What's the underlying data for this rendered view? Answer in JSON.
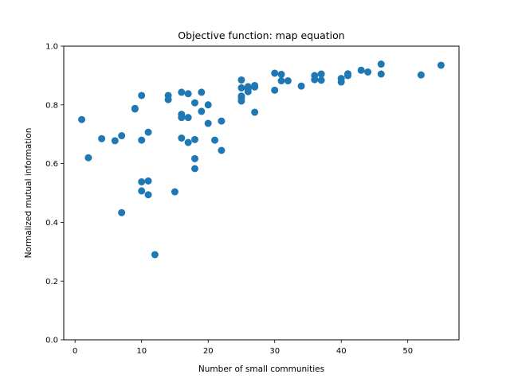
{
  "chart_data": {
    "type": "scatter",
    "title": "Objective function: map equation",
    "xlabel": "Number of small communities",
    "ylabel": "Normalized mutual information",
    "xlim": [
      -1.7,
      57.7
    ],
    "ylim": [
      0.0,
      1.0
    ],
    "xticks": [
      0,
      10,
      20,
      30,
      40,
      50
    ],
    "yticks": [
      0.0,
      0.2,
      0.4,
      0.6,
      0.8,
      1.0
    ],
    "ytick_labels": [
      "0.0",
      "0.2",
      "0.4",
      "0.6",
      "0.8",
      "1.0"
    ],
    "point_color": "#1f77b4",
    "grid": false,
    "points": [
      [
        1,
        0.75
      ],
      [
        2,
        0.62
      ],
      [
        4,
        0.685
      ],
      [
        6,
        0.678
      ],
      [
        7,
        0.695
      ],
      [
        7,
        0.433
      ],
      [
        9,
        0.786
      ],
      [
        9,
        0.788
      ],
      [
        10,
        0.832
      ],
      [
        10,
        0.68
      ],
      [
        10,
        0.538
      ],
      [
        10,
        0.507
      ],
      [
        11,
        0.707
      ],
      [
        11,
        0.541
      ],
      [
        11,
        0.494
      ],
      [
        12,
        0.29
      ],
      [
        14,
        0.832
      ],
      [
        14,
        0.818
      ],
      [
        15,
        0.504
      ],
      [
        16,
        0.843
      ],
      [
        16,
        0.768
      ],
      [
        16,
        0.757
      ],
      [
        16,
        0.687
      ],
      [
        17,
        0.838
      ],
      [
        17,
        0.757
      ],
      [
        17,
        0.672
      ],
      [
        18,
        0.807
      ],
      [
        18,
        0.682
      ],
      [
        18,
        0.617
      ],
      [
        18,
        0.583
      ],
      [
        19,
        0.843
      ],
      [
        19,
        0.778
      ],
      [
        20,
        0.8
      ],
      [
        20,
        0.737
      ],
      [
        21,
        0.68
      ],
      [
        22,
        0.745
      ],
      [
        22,
        0.645
      ],
      [
        25,
        0.885
      ],
      [
        25,
        0.858
      ],
      [
        25,
        0.83
      ],
      [
        25,
        0.824
      ],
      [
        25,
        0.813
      ],
      [
        26,
        0.862
      ],
      [
        26,
        0.855
      ],
      [
        26,
        0.845
      ],
      [
        27,
        0.866
      ],
      [
        27,
        0.861
      ],
      [
        27,
        0.775
      ],
      [
        30,
        0.908
      ],
      [
        30,
        0.85
      ],
      [
        31,
        0.904
      ],
      [
        31,
        0.882
      ],
      [
        32,
        0.882
      ],
      [
        34,
        0.864
      ],
      [
        36,
        0.9
      ],
      [
        36,
        0.886
      ],
      [
        37,
        0.905
      ],
      [
        37,
        0.884
      ],
      [
        40,
        0.89
      ],
      [
        40,
        0.878
      ],
      [
        41,
        0.906
      ],
      [
        41,
        0.9
      ],
      [
        43,
        0.918
      ],
      [
        44,
        0.912
      ],
      [
        46,
        0.939
      ],
      [
        46,
        0.905
      ],
      [
        52,
        0.902
      ],
      [
        55,
        0.935
      ]
    ]
  }
}
